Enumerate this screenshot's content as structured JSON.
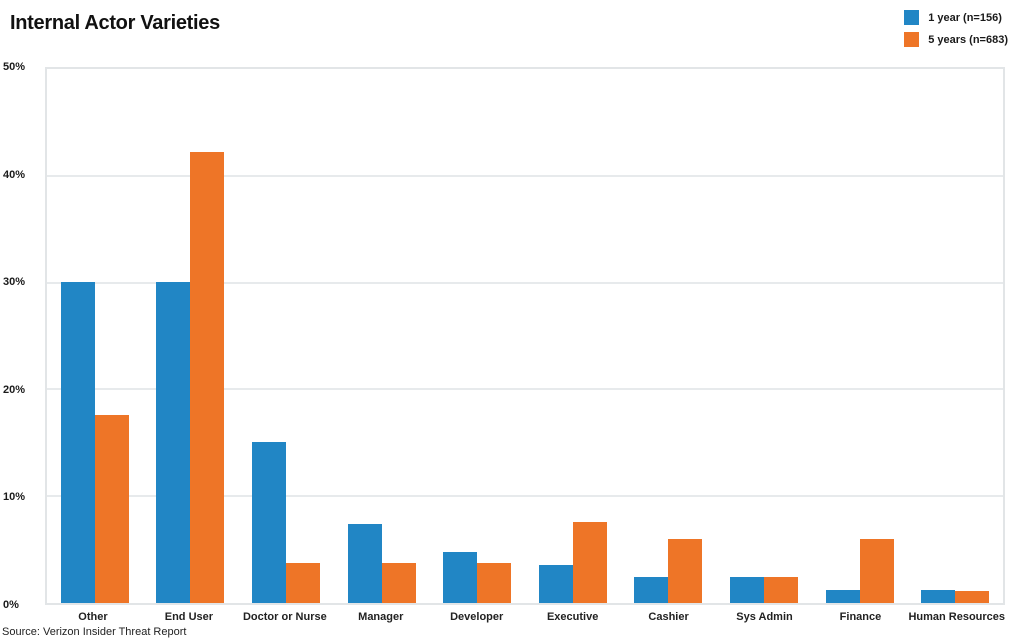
{
  "title": "Internal Actor Varieties",
  "source": "Source: Verizon Insider Threat Report",
  "colors": {
    "series1_blue": "#2186C5",
    "series2_orange": "#EE7527",
    "gridline": "#e7eaec",
    "plot_border": "#e2e5e7",
    "text": "#1a1a1a"
  },
  "chart_data": {
    "type": "bar",
    "title": "Internal Actor Varieties",
    "xlabel": "",
    "ylabel": "",
    "ylim": [
      0,
      50
    ],
    "grid": true,
    "legend_position": "top-right",
    "categories": [
      "Other",
      "End User",
      "Doctor or Nurse",
      "Manager",
      "Developer",
      "Executive",
      "Cashier",
      "Sys Admin",
      "Finance",
      "Human Resources"
    ],
    "series": [
      {
        "name": "1 year (n=156)",
        "color": "#2186C5",
        "values": [
          30.1,
          30.1,
          15.1,
          7.4,
          4.8,
          3.6,
          2.4,
          2.4,
          1.2,
          1.2
        ]
      },
      {
        "name": "5 years (n=683)",
        "color": "#EE7527",
        "values": [
          17.6,
          42.2,
          3.7,
          3.7,
          3.7,
          7.6,
          6.0,
          2.4,
          6.0,
          1.1
        ]
      }
    ],
    "yticks": [
      {
        "value": 50,
        "label": "50%"
      },
      {
        "value": 40,
        "label": "40%"
      },
      {
        "value": 30,
        "label": "30%"
      },
      {
        "value": 20,
        "label": "20%"
      },
      {
        "value": 10,
        "label": "10%"
      },
      {
        "value": 0,
        "label": "0%"
      }
    ],
    "source": "Source: Verizon Insider Threat Report"
  }
}
